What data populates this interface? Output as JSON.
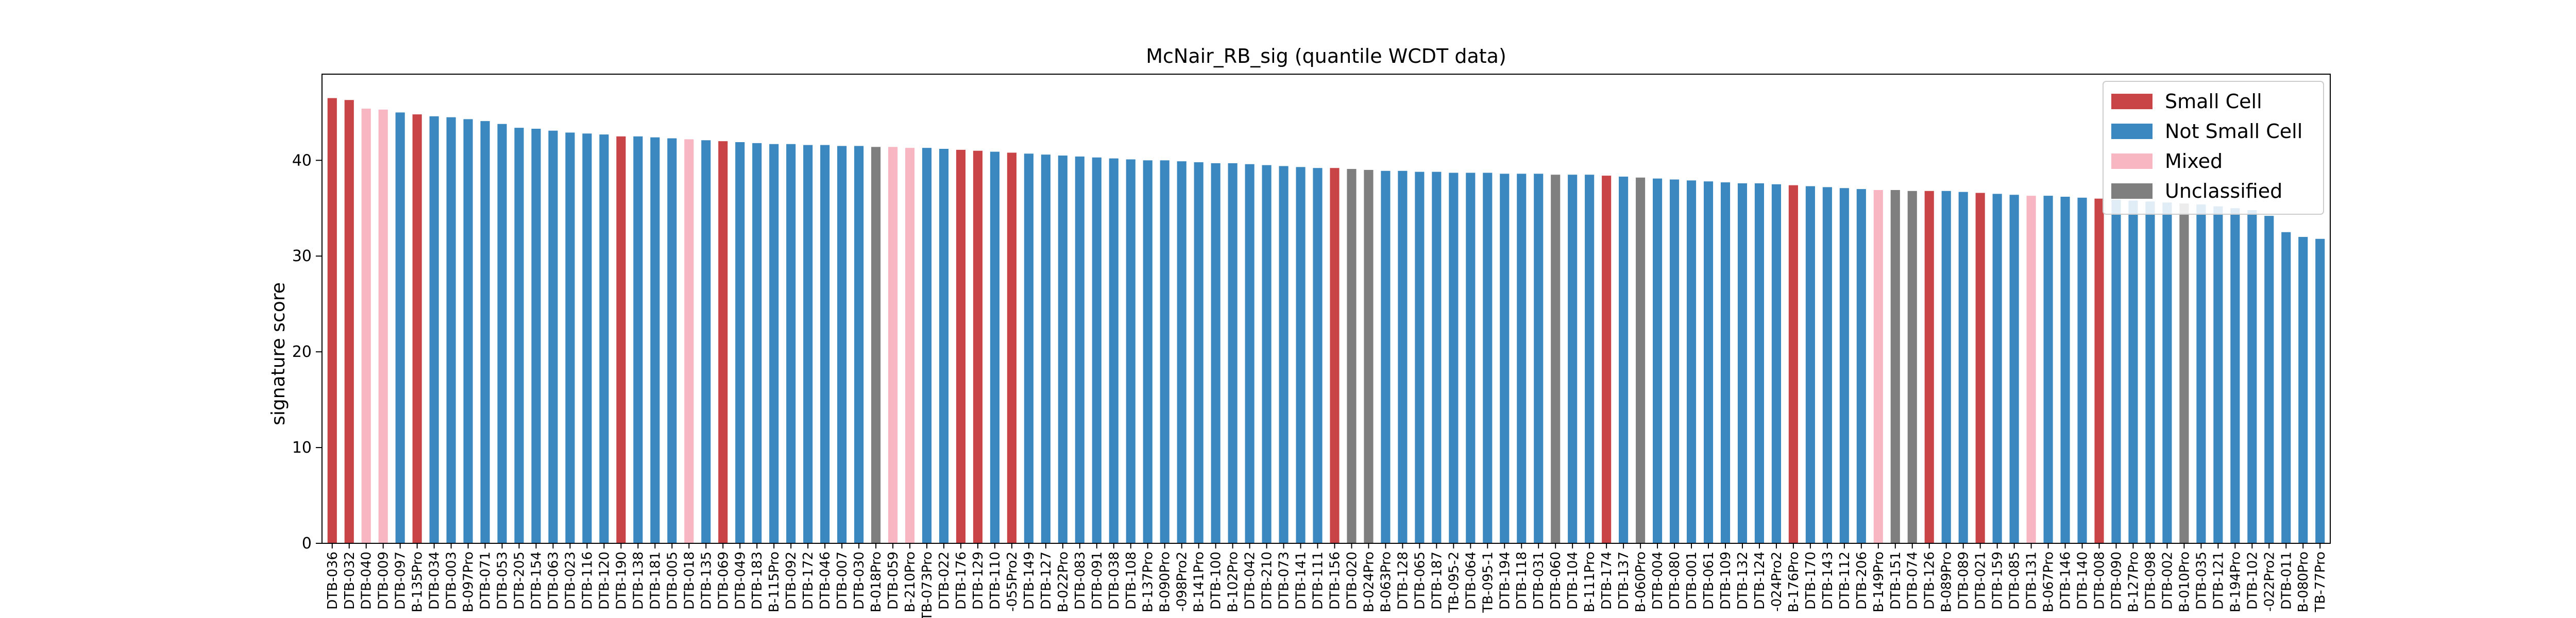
{
  "chart_data": {
    "type": "bar",
    "title": "McNair_RB_sig (quantile WCDT data)",
    "xlabel": "",
    "ylabel": "signature score",
    "ylim": [
      0,
      49
    ],
    "yticks": [
      0,
      10,
      20,
      30,
      40
    ],
    "grid": false,
    "legend_position": "top-right",
    "legend": [
      {
        "name": "Small Cell",
        "color": "#c84446"
      },
      {
        "name": "Not Small Cell",
        "color": "#3a88bf"
      },
      {
        "name": "Mixed",
        "color": "#f7b6c2"
      },
      {
        "name": "Unclassified",
        "color": "#7f7f7f"
      }
    ],
    "categories": [
      "DTB-036",
      "DTB-032",
      "DTB-040",
      "DTB-009",
      "DTB-097",
      "B-135Pro",
      "DTB-034",
      "DTB-003",
      "B-097Pro",
      "DTB-071",
      "DTB-053",
      "DTB-205",
      "DTB-154",
      "DTB-063",
      "DTB-023",
      "DTB-116",
      "DTB-120",
      "DTB-190",
      "DTB-138",
      "DTB-181",
      "DTB-005",
      "DTB-018",
      "DTB-135",
      "DTB-069",
      "DTB-049",
      "DTB-183",
      "B-115Pro",
      "DTB-092",
      "DTB-172",
      "DTB-046",
      "DTB-007",
      "DTB-030",
      "B-018Pro",
      "DTB-059",
      "B-210Pro",
      "DTB-073Pro",
      "DTB-022",
      "DTB-176",
      "DTB-129",
      "DTB-110",
      "-055Pro2",
      "DTB-149",
      "DTB-127",
      "B-022Pro",
      "DTB-083",
      "DTB-091",
      "DTB-038",
      "DTB-108",
      "B-137Pro",
      "B-090Pro",
      "-098Pro2",
      "B-141Pro",
      "DTB-100",
      "B-102Pro",
      "DTB-042",
      "DTB-210",
      "DTB-073",
      "DTB-141",
      "DTB-111",
      "DTB-156",
      "DTB-020",
      "B-024Pro",
      "B-063Pro",
      "DTB-128",
      "DTB-065",
      "DTB-187",
      "TB-095-2",
      "DTB-064",
      "TB-095-1",
      "DTB-194",
      "DTB-118",
      "DTB-031",
      "DTB-060",
      "DTB-104",
      "B-111Pro",
      "DTB-174",
      "DTB-137",
      "B-060Pro",
      "DTB-004",
      "DTB-080",
      "DTB-001",
      "DTB-061",
      "DTB-109",
      "DTB-132",
      "DTB-124",
      "-024Pro2",
      "B-176Pro",
      "DTB-170",
      "DTB-143",
      "DTB-112",
      "DTB-206",
      "B-149Pro",
      "DTB-151",
      "DTB-074",
      "DTB-126",
      "B-089Pro",
      "DTB-089",
      "DTB-021",
      "DTB-159",
      "DTB-085",
      "DTB-131",
      "B-067Pro",
      "DTB-146",
      "DTB-140",
      "DTB-008",
      "DTB-090",
      "B-127Pro",
      "DTB-098",
      "DTB-002",
      "B-010Pro",
      "DTB-035",
      "DTB-121",
      "B-194Pro",
      "DTB-102",
      "-022Pro2",
      "DTB-011",
      "B-080Pro",
      "TB-77Pro"
    ],
    "values": [
      46.5,
      46.3,
      45.4,
      45.3,
      45.0,
      44.8,
      44.6,
      44.5,
      44.3,
      44.1,
      43.8,
      43.4,
      43.3,
      43.1,
      42.9,
      42.8,
      42.7,
      42.5,
      42.5,
      42.4,
      42.3,
      42.2,
      42.1,
      42.0,
      41.9,
      41.8,
      41.7,
      41.7,
      41.6,
      41.6,
      41.5,
      41.5,
      41.4,
      41.4,
      41.3,
      41.3,
      41.2,
      41.1,
      41.0,
      40.9,
      40.8,
      40.7,
      40.6,
      40.5,
      40.4,
      40.3,
      40.2,
      40.1,
      40.0,
      40.0,
      39.9,
      39.8,
      39.7,
      39.7,
      39.6,
      39.5,
      39.4,
      39.3,
      39.2,
      39.2,
      39.1,
      39.0,
      38.9,
      38.9,
      38.8,
      38.8,
      38.7,
      38.7,
      38.7,
      38.6,
      38.6,
      38.6,
      38.5,
      38.5,
      38.5,
      38.4,
      38.3,
      38.2,
      38.1,
      38.0,
      37.9,
      37.8,
      37.7,
      37.6,
      37.6,
      37.5,
      37.4,
      37.3,
      37.2,
      37.1,
      37.0,
      36.9,
      36.9,
      36.8,
      36.8,
      36.8,
      36.7,
      36.6,
      36.5,
      36.4,
      36.3,
      36.3,
      36.2,
      36.1,
      36.0,
      35.9,
      35.8,
      35.7,
      35.6,
      35.5,
      35.4,
      35.2,
      35.0,
      34.8,
      34.2,
      32.5,
      32.0,
      31.8
    ],
    "groups": [
      "Small Cell",
      "Small Cell",
      "Mixed",
      "Mixed",
      "Not Small Cell",
      "Small Cell",
      "Not Small Cell",
      "Not Small Cell",
      "Not Small Cell",
      "Not Small Cell",
      "Not Small Cell",
      "Not Small Cell",
      "Not Small Cell",
      "Not Small Cell",
      "Not Small Cell",
      "Not Small Cell",
      "Not Small Cell",
      "Small Cell",
      "Not Small Cell",
      "Not Small Cell",
      "Not Small Cell",
      "Mixed",
      "Not Small Cell",
      "Small Cell",
      "Not Small Cell",
      "Not Small Cell",
      "Not Small Cell",
      "Not Small Cell",
      "Not Small Cell",
      "Not Small Cell",
      "Not Small Cell",
      "Not Small Cell",
      "Unclassified",
      "Mixed",
      "Mixed",
      "Not Small Cell",
      "Not Small Cell",
      "Small Cell",
      "Small Cell",
      "Not Small Cell",
      "Small Cell",
      "Not Small Cell",
      "Not Small Cell",
      "Not Small Cell",
      "Not Small Cell",
      "Not Small Cell",
      "Not Small Cell",
      "Not Small Cell",
      "Not Small Cell",
      "Not Small Cell",
      "Not Small Cell",
      "Not Small Cell",
      "Not Small Cell",
      "Not Small Cell",
      "Not Small Cell",
      "Not Small Cell",
      "Not Small Cell",
      "Not Small Cell",
      "Not Small Cell",
      "Small Cell",
      "Unclassified",
      "Unclassified",
      "Not Small Cell",
      "Not Small Cell",
      "Not Small Cell",
      "Not Small Cell",
      "Not Small Cell",
      "Not Small Cell",
      "Not Small Cell",
      "Not Small Cell",
      "Not Small Cell",
      "Not Small Cell",
      "Unclassified",
      "Not Small Cell",
      "Not Small Cell",
      "Small Cell",
      "Not Small Cell",
      "Unclassified",
      "Not Small Cell",
      "Not Small Cell",
      "Not Small Cell",
      "Not Small Cell",
      "Not Small Cell",
      "Not Small Cell",
      "Not Small Cell",
      "Not Small Cell",
      "Small Cell",
      "Not Small Cell",
      "Not Small Cell",
      "Not Small Cell",
      "Not Small Cell",
      "Mixed",
      "Unclassified",
      "Unclassified",
      "Small Cell",
      "Not Small Cell",
      "Not Small Cell",
      "Small Cell",
      "Not Small Cell",
      "Not Small Cell",
      "Mixed",
      "Not Small Cell",
      "Not Small Cell",
      "Not Small Cell",
      "Small Cell",
      "Not Small Cell",
      "Not Small Cell",
      "Not Small Cell",
      "Not Small Cell",
      "Unclassified",
      "Not Small Cell",
      "Not Small Cell",
      "Not Small Cell",
      "Not Small Cell",
      "Not Small Cell",
      "Not Small Cell",
      "Not Small Cell",
      "Not Small Cell"
    ]
  }
}
